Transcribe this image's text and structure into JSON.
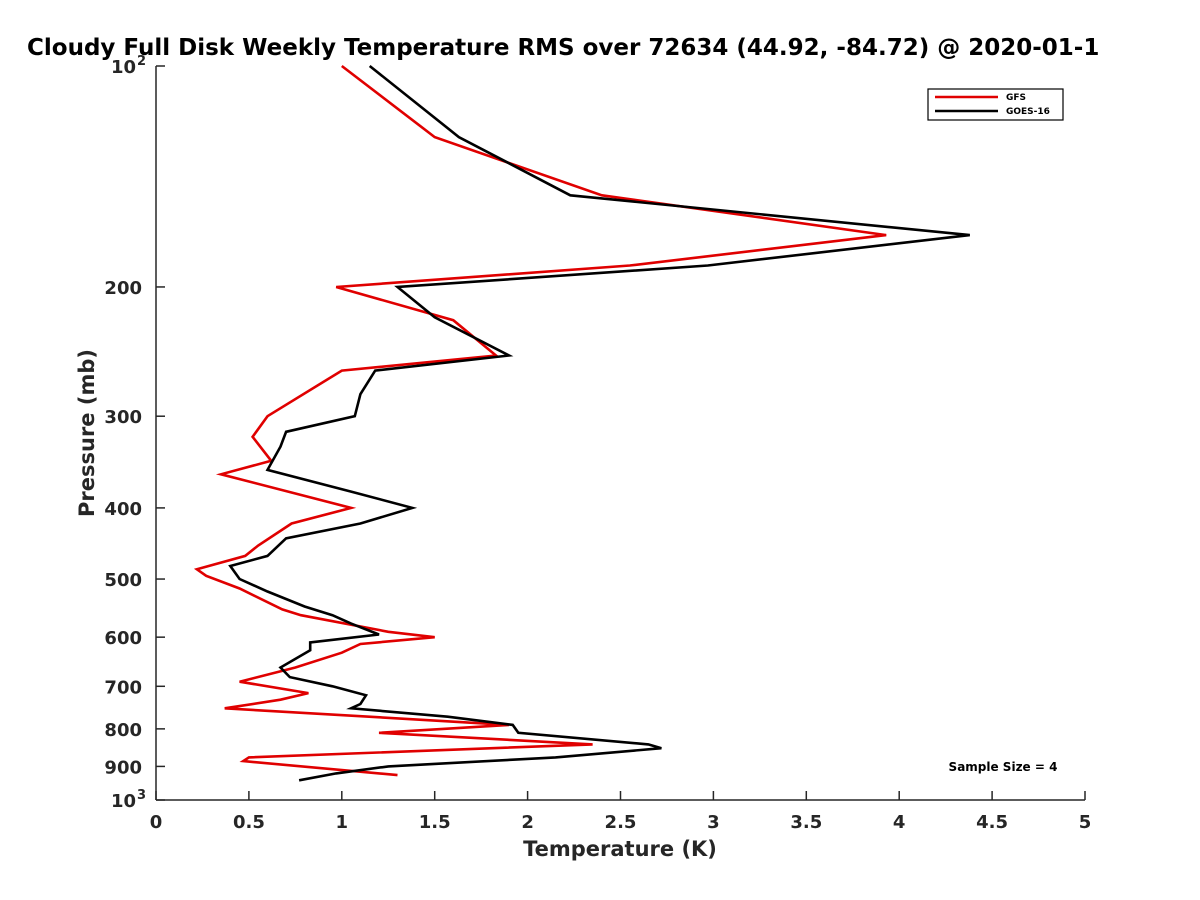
{
  "chart_data": {
    "type": "line",
    "title": "Cloudy Full Disk Weekly Temperature RMS over 72634 (44.92, -84.72) @ 2020-01-1",
    "xlabel": "Temperature (K)",
    "ylabel": "Pressure (mb)",
    "xlim": [
      0,
      5
    ],
    "ylim": [
      100,
      1000
    ],
    "yscale": "log",
    "y_reversed": true,
    "grid": false,
    "legend_position": "top-right",
    "x_ticks": [
      0,
      0.5,
      1,
      1.5,
      2,
      2.5,
      3,
      3.5,
      4,
      4.5,
      5
    ],
    "x_tick_labels": [
      "0",
      "0.5",
      "1",
      "1.5",
      "2",
      "2.5",
      "3",
      "3.5",
      "4",
      "4.5",
      "5"
    ],
    "y_ticks": [
      100,
      200,
      300,
      400,
      500,
      600,
      700,
      800,
      900,
      1000
    ],
    "y_tick_labels": [
      {
        "base": "10",
        "exp": "2"
      },
      {
        "base": "200",
        "exp": ""
      },
      {
        "base": "300",
        "exp": ""
      },
      {
        "base": "400",
        "exp": ""
      },
      {
        "base": "500",
        "exp": ""
      },
      {
        "base": "600",
        "exp": ""
      },
      {
        "base": "700",
        "exp": ""
      },
      {
        "base": "800",
        "exp": ""
      },
      {
        "base": "900",
        "exp": ""
      },
      {
        "base": "10",
        "exp": "3"
      }
    ],
    "series": [
      {
        "name": "GFS",
        "color": "#e00000",
        "points": [
          [
            1.0,
            100
          ],
          [
            1.5,
            125
          ],
          [
            2.4,
            150
          ],
          [
            3.93,
            170
          ],
          [
            2.55,
            187
          ],
          [
            0.97,
            200
          ],
          [
            1.6,
            222
          ],
          [
            1.83,
            248
          ],
          [
            1.0,
            260
          ],
          [
            0.6,
            300
          ],
          [
            0.52,
            320
          ],
          [
            0.62,
            345
          ],
          [
            0.35,
            360
          ],
          [
            1.05,
            400
          ],
          [
            0.73,
            420
          ],
          [
            0.55,
            450
          ],
          [
            0.48,
            465
          ],
          [
            0.22,
            485
          ],
          [
            0.27,
            495
          ],
          [
            0.45,
            515
          ],
          [
            0.68,
            550
          ],
          [
            0.78,
            560
          ],
          [
            1.25,
            590
          ],
          [
            1.5,
            600
          ],
          [
            1.1,
            613
          ],
          [
            1.0,
            630
          ],
          [
            0.75,
            660
          ],
          [
            0.45,
            690
          ],
          [
            0.82,
            715
          ],
          [
            0.67,
            730
          ],
          [
            0.37,
            750
          ],
          [
            1.9,
            790
          ],
          [
            1.2,
            810
          ],
          [
            2.35,
            840
          ],
          [
            0.5,
            875
          ],
          [
            0.47,
            885
          ],
          [
            1.3,
            925
          ]
        ]
      },
      {
        "name": "GOES-16",
        "color": "#000000",
        "points": [
          [
            1.15,
            100
          ],
          [
            1.63,
            125
          ],
          [
            2.23,
            150
          ],
          [
            4.38,
            170
          ],
          [
            2.97,
            187
          ],
          [
            1.3,
            200
          ],
          [
            1.5,
            220
          ],
          [
            1.9,
            248
          ],
          [
            1.18,
            260
          ],
          [
            1.1,
            280
          ],
          [
            1.07,
            300
          ],
          [
            0.7,
            315
          ],
          [
            0.67,
            330
          ],
          [
            0.6,
            355
          ],
          [
            1.05,
            380
          ],
          [
            1.38,
            400
          ],
          [
            1.1,
            420
          ],
          [
            0.7,
            440
          ],
          [
            0.6,
            465
          ],
          [
            0.4,
            480
          ],
          [
            0.45,
            500
          ],
          [
            0.6,
            520
          ],
          [
            0.8,
            545
          ],
          [
            0.95,
            560
          ],
          [
            1.05,
            575
          ],
          [
            1.2,
            595
          ],
          [
            0.83,
            610
          ],
          [
            0.83,
            625
          ],
          [
            0.67,
            660
          ],
          [
            0.72,
            680
          ],
          [
            0.95,
            700
          ],
          [
            1.13,
            720
          ],
          [
            1.1,
            740
          ],
          [
            1.05,
            750
          ],
          [
            1.57,
            770
          ],
          [
            1.92,
            790
          ],
          [
            1.95,
            810
          ],
          [
            2.65,
            840
          ],
          [
            2.72,
            850
          ],
          [
            2.15,
            875
          ],
          [
            1.25,
            900
          ],
          [
            0.97,
            920
          ],
          [
            0.77,
            940
          ]
        ]
      }
    ],
    "annotation": "Sample Size = 4"
  }
}
